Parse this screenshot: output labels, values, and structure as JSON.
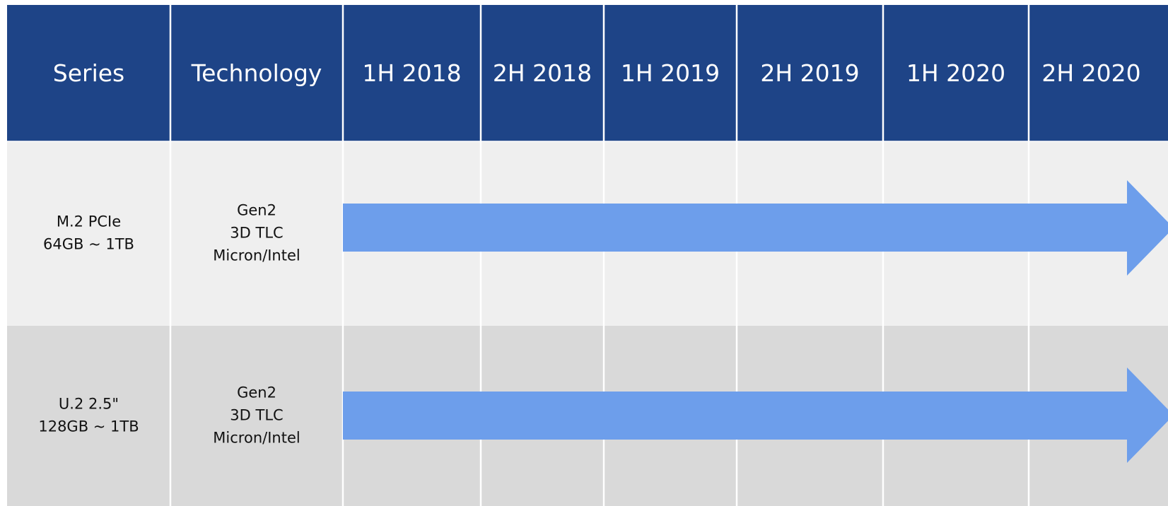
{
  "table": {
    "header": [
      "Series",
      "Technology",
      "1H 2018",
      "2H 2018",
      "1H 2019",
      "2H 2019",
      "1H 2020",
      "2H 2020"
    ],
    "rows": [
      {
        "series": [
          "M.2 PCIe",
          "64GB ~ 1TB"
        ],
        "technology": [
          "Gen2",
          "3D TLC",
          "Micron/Intel"
        ]
      },
      {
        "series": [
          "U.2 2.5\"",
          "128GB ~ 1TB"
        ],
        "technology": [
          "Gen2",
          "3D TLC",
          "Micron/Intel"
        ]
      }
    ]
  }
}
